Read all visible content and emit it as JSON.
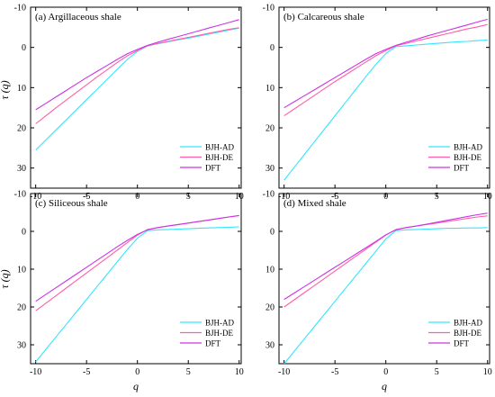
{
  "figure": {
    "y_axis_label": "τ (q)",
    "x_axis_label": "q"
  },
  "chart_data": [
    {
      "type": "line",
      "title": "(a) Argillaceous  shale",
      "xlabel": "",
      "ylabel": "τ (q)",
      "xlim": [
        -10.5,
        10.2
      ],
      "ylim": [
        -10,
        35
      ],
      "y_inverted": true,
      "xticks": [
        -10,
        -5,
        0,
        5,
        10
      ],
      "yticks": [
        -10,
        0,
        10,
        20,
        30
      ],
      "grid": false,
      "legend_position": "bottom-right",
      "series": [
        {
          "name": "BJH-AD",
          "color": "#33e6ff",
          "x": [
            -10,
            -9,
            -8,
            -7,
            -6,
            -5,
            -4,
            -3,
            -2,
            -1,
            0,
            1,
            2,
            3,
            4,
            5,
            6,
            7,
            8,
            9,
            10
          ],
          "y": [
            25.5,
            23.0,
            20.5,
            18.0,
            15.5,
            13.0,
            10.5,
            8.0,
            5.5,
            3.0,
            1.0,
            -0.4,
            -0.9,
            -1.4,
            -1.9,
            -2.3,
            -2.8,
            -3.3,
            -3.8,
            -4.3,
            -4.8
          ]
        },
        {
          "name": "BJH-DE",
          "color": "#ff5fa8",
          "x": [
            -10,
            -9,
            -8,
            -7,
            -6,
            -5,
            -4,
            -3,
            -2,
            -1,
            0,
            1,
            2,
            3,
            4,
            5,
            6,
            7,
            8,
            9,
            10
          ],
          "y": [
            19.0,
            17.0,
            15.0,
            13.1,
            11.2,
            9.3,
            7.4,
            5.6,
            3.8,
            2.1,
            0.8,
            -0.4,
            -1.0,
            -1.5,
            -2.0,
            -2.5,
            -3.0,
            -3.5,
            -4.0,
            -4.5,
            -4.9
          ]
        },
        {
          "name": "DFT",
          "color": "#cc33e6",
          "x": [
            -10,
            -9,
            -8,
            -7,
            -6,
            -5,
            -4,
            -3,
            -2,
            -1,
            0,
            1,
            2,
            3,
            4,
            5,
            6,
            7,
            8,
            9,
            10
          ],
          "y": [
            15.5,
            13.9,
            12.3,
            10.7,
            9.1,
            7.5,
            6.0,
            4.5,
            3.0,
            1.6,
            0.5,
            -0.5,
            -1.3,
            -2.0,
            -2.7,
            -3.4,
            -4.1,
            -4.8,
            -5.5,
            -6.2,
            -6.9
          ]
        }
      ]
    },
    {
      "type": "line",
      "title": "(b) Calcareous shale",
      "xlabel": "",
      "ylabel": "",
      "xlim": [
        -10.5,
        10.2
      ],
      "ylim": [
        -10,
        35
      ],
      "y_inverted": true,
      "xticks": [
        -10,
        -5,
        0,
        5,
        10
      ],
      "yticks": [
        -10,
        0,
        10,
        20,
        30
      ],
      "grid": false,
      "legend_position": "bottom-right",
      "series": [
        {
          "name": "BJH-AD",
          "color": "#33e6ff",
          "x": [
            -10,
            -9,
            -8,
            -7,
            -6,
            -5,
            -4,
            -3,
            -2,
            -1,
            0,
            1,
            2,
            3,
            4,
            5,
            6,
            7,
            8,
            9,
            10
          ],
          "y": [
            33.0,
            29.8,
            26.6,
            23.4,
            20.2,
            17.0,
            13.8,
            10.6,
            7.4,
            4.3,
            1.5,
            -0.2,
            -0.4,
            -0.6,
            -0.8,
            -1.0,
            -1.2,
            -1.4,
            -1.5,
            -1.7,
            -1.8
          ]
        },
        {
          "name": "BJH-DE",
          "color": "#ff5fa8",
          "x": [
            -10,
            -9,
            -8,
            -7,
            -6,
            -5,
            -4,
            -3,
            -2,
            -1,
            0,
            1,
            2,
            3,
            4,
            5,
            6,
            7,
            8,
            9,
            10
          ],
          "y": [
            17.0,
            15.3,
            13.6,
            11.9,
            10.2,
            8.5,
            6.9,
            5.3,
            3.7,
            2.1,
            0.8,
            -0.4,
            -1.0,
            -1.6,
            -2.2,
            -2.8,
            -3.4,
            -4.0,
            -4.6,
            -5.1,
            -5.7
          ]
        },
        {
          "name": "DFT",
          "color": "#cc33e6",
          "x": [
            -10,
            -9,
            -8,
            -7,
            -6,
            -5,
            -4,
            -3,
            -2,
            -1,
            0,
            1,
            2,
            3,
            4,
            5,
            6,
            7,
            8,
            9,
            10
          ],
          "y": [
            15.0,
            13.5,
            12.0,
            10.5,
            9.0,
            7.5,
            6.0,
            4.5,
            3.0,
            1.6,
            0.5,
            -0.5,
            -1.3,
            -2.0,
            -2.8,
            -3.5,
            -4.2,
            -4.9,
            -5.6,
            -6.3,
            -7.0
          ]
        }
      ]
    },
    {
      "type": "line",
      "title": "(c)  Siliceous shale",
      "xlabel": "q",
      "ylabel": "τ (q)",
      "xlim": [
        -10.5,
        10.2
      ],
      "ylim": [
        -10,
        35
      ],
      "y_inverted": true,
      "xticks": [
        -10,
        -5,
        0,
        5,
        10
      ],
      "yticks": [
        -10,
        0,
        10,
        20,
        30
      ],
      "grid": false,
      "legend_position": "bottom-right",
      "series": [
        {
          "name": "BJH-AD",
          "color": "#33e6ff",
          "x": [
            -10,
            -9,
            -8,
            -7,
            -6,
            -5,
            -4,
            -3,
            -2,
            -1,
            0,
            1,
            2,
            3,
            4,
            5,
            6,
            7,
            8,
            9,
            10
          ],
          "y": [
            34.5,
            31.2,
            27.9,
            24.6,
            21.3,
            18.0,
            14.7,
            11.4,
            8.1,
            4.8,
            1.8,
            -0.2,
            -0.4,
            -0.5,
            -0.6,
            -0.7,
            -0.8,
            -0.9,
            -1.0,
            -1.1,
            -1.2
          ]
        },
        {
          "name": "BJH-DE",
          "color": "#ff5fa8",
          "x": [
            -10,
            -9,
            -8,
            -7,
            -6,
            -5,
            -4,
            -3,
            -2,
            -1,
            0,
            1,
            2,
            3,
            4,
            5,
            6,
            7,
            8,
            9,
            10
          ],
          "y": [
            21.0,
            19.0,
            17.0,
            15.0,
            13.0,
            11.0,
            9.0,
            7.0,
            5.0,
            3.0,
            1.0,
            -0.5,
            -1.0,
            -1.4,
            -1.8,
            -2.2,
            -2.6,
            -3.0,
            -3.4,
            -3.8,
            -4.2
          ]
        },
        {
          "name": "DFT",
          "color": "#cc33e6",
          "x": [
            -10,
            -9,
            -8,
            -7,
            -6,
            -5,
            -4,
            -3,
            -2,
            -1,
            0,
            1,
            2,
            3,
            4,
            5,
            6,
            7,
            8,
            9,
            10
          ],
          "y": [
            18.5,
            16.7,
            14.9,
            13.1,
            11.3,
            9.5,
            7.7,
            5.9,
            4.1,
            2.4,
            0.8,
            -0.4,
            -1.0,
            -1.4,
            -1.8,
            -2.2,
            -2.6,
            -3.0,
            -3.4,
            -3.8,
            -4.2
          ]
        }
      ]
    },
    {
      "type": "line",
      "title": "(d) Mixed shale",
      "xlabel": "q",
      "ylabel": "",
      "xlim": [
        -10.5,
        10.2
      ],
      "ylim": [
        -10,
        35
      ],
      "y_inverted": true,
      "xticks": [
        -10,
        -5,
        0,
        5,
        10
      ],
      "yticks": [
        -10,
        0,
        10,
        20,
        30
      ],
      "grid": false,
      "legend_position": "bottom-right",
      "series": [
        {
          "name": "BJH-AD",
          "color": "#33e6ff",
          "x": [
            -10,
            -9,
            -8,
            -7,
            -6,
            -5,
            -4,
            -3,
            -2,
            -1,
            0,
            1,
            2,
            3,
            4,
            5,
            6,
            7,
            8,
            9,
            10
          ],
          "y": [
            35.0,
            31.7,
            28.4,
            25.1,
            21.8,
            18.5,
            15.2,
            11.9,
            8.6,
            5.3,
            2.0,
            -0.2,
            -0.4,
            -0.5,
            -0.6,
            -0.7,
            -0.8,
            -0.8,
            -0.9,
            -0.9,
            -1.0
          ]
        },
        {
          "name": "BJH-DE",
          "color": "#ff5fa8",
          "x": [
            -10,
            -9,
            -8,
            -7,
            -6,
            -5,
            -4,
            -3,
            -2,
            -1,
            0,
            1,
            2,
            3,
            4,
            5,
            6,
            7,
            8,
            9,
            10
          ],
          "y": [
            20.0,
            18.1,
            16.2,
            14.3,
            12.4,
            10.5,
            8.6,
            6.7,
            4.8,
            2.9,
            1.0,
            -0.5,
            -1.0,
            -1.4,
            -1.8,
            -2.2,
            -2.6,
            -3.0,
            -3.4,
            -3.8,
            -4.1
          ]
        },
        {
          "name": "DFT",
          "color": "#cc33e6",
          "x": [
            -10,
            -9,
            -8,
            -7,
            -6,
            -5,
            -4,
            -3,
            -2,
            -1,
            0,
            1,
            2,
            3,
            4,
            5,
            6,
            7,
            8,
            9,
            10
          ],
          "y": [
            18.0,
            16.3,
            14.6,
            12.9,
            11.2,
            9.5,
            7.8,
            6.1,
            4.4,
            2.7,
            0.9,
            -0.4,
            -1.0,
            -1.4,
            -1.9,
            -2.4,
            -2.9,
            -3.4,
            -3.9,
            -4.4,
            -4.8
          ]
        }
      ]
    }
  ]
}
